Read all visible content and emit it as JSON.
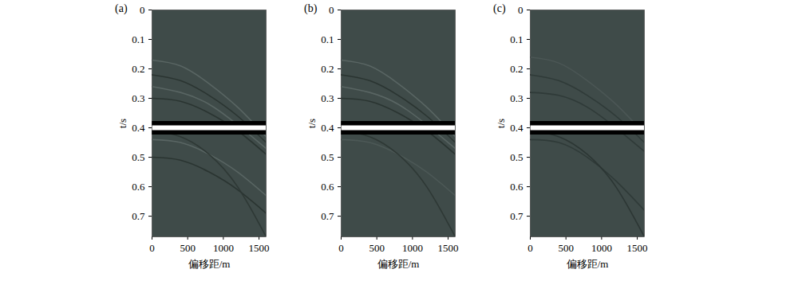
{
  "chart_data": [
    {
      "type": "line",
      "title": "(a)",
      "x_label": "偏移距/m",
      "y_label": "t/s",
      "xlim": [
        0,
        1600
      ],
      "xticks": [
        0,
        500,
        1000,
        1500
      ],
      "ylim": [
        0,
        0.77
      ],
      "yticks": [
        0,
        0.1,
        0.2,
        0.3,
        0.4,
        0.5,
        0.6,
        0.7
      ],
      "color": "#3f4b49",
      "series": [
        {
          "color": "#5c6866",
          "line_style": "thin",
          "x": [
            0,
            400,
            800,
            1200,
            1600
          ],
          "values": [
            0.17,
            0.19,
            0.25,
            0.33,
            0.43
          ]
        },
        {
          "color": "#28322f",
          "line_style": "thin",
          "x": [
            0,
            400,
            800,
            1200,
            1600
          ],
          "values": [
            0.22,
            0.24,
            0.29,
            0.36,
            0.45
          ]
        },
        {
          "color": "#5c6866",
          "line_style": "thin",
          "x": [
            0,
            400,
            800,
            1200,
            1600
          ],
          "values": [
            0.26,
            0.28,
            0.32,
            0.39,
            0.47
          ]
        },
        {
          "color": "#28322f",
          "line_style": "thin",
          "x": [
            0,
            400,
            800,
            1200,
            1600
          ],
          "values": [
            0.3,
            0.31,
            0.35,
            0.41,
            0.49
          ]
        },
        {
          "color": "#5c6866",
          "line_style": "thin",
          "x": [
            0,
            400,
            800,
            1200,
            1600
          ],
          "values": [
            0.44,
            0.45,
            0.49,
            0.55,
            0.63
          ]
        },
        {
          "color": "#28322f",
          "line_style": "thin",
          "x": [
            0,
            400,
            800,
            1200,
            1600
          ],
          "values": [
            0.5,
            0.51,
            0.55,
            0.61,
            0.69
          ]
        },
        {
          "color": "#2c3633",
          "line_style": "thin",
          "x": [
            0,
            400,
            800,
            1200,
            1600
          ],
          "values": [
            0.41,
            0.43,
            0.49,
            0.6,
            0.77
          ]
        },
        {
          "color": "#000000",
          "line_style": "thick",
          "x": [
            0,
            1600
          ],
          "values": [
            0.385,
            0.385
          ]
        },
        {
          "color": "#000000",
          "line_style": "thick",
          "x": [
            0,
            1600
          ],
          "values": [
            0.415,
            0.415
          ]
        },
        {
          "color": "#ffffff",
          "line_style": "thick",
          "x": [
            0,
            1600
          ],
          "values": [
            0.4,
            0.4
          ]
        }
      ]
    },
    {
      "type": "line",
      "title": "(b)",
      "x_label": "偏移距/m",
      "y_label": "t/s",
      "xlim": [
        0,
        1600
      ],
      "xticks": [
        0,
        500,
        1000,
        1500
      ],
      "ylim": [
        0,
        0.77
      ],
      "yticks": [
        0,
        0.1,
        0.2,
        0.3,
        0.4,
        0.5,
        0.6,
        0.7
      ],
      "color": "#3f4b49",
      "series": [
        {
          "color": "#5c6866",
          "line_style": "thin",
          "x": [
            0,
            400,
            800,
            1200,
            1600
          ],
          "values": [
            0.17,
            0.19,
            0.25,
            0.33,
            0.43
          ]
        },
        {
          "color": "#28322f",
          "line_style": "thin",
          "x": [
            0,
            400,
            800,
            1200,
            1600
          ],
          "values": [
            0.22,
            0.24,
            0.29,
            0.36,
            0.45
          ]
        },
        {
          "color": "#5c6866",
          "line_style": "thin",
          "x": [
            0,
            400,
            800,
            1200,
            1600
          ],
          "values": [
            0.26,
            0.28,
            0.32,
            0.39,
            0.47
          ]
        },
        {
          "color": "#28322f",
          "line_style": "thin",
          "x": [
            0,
            400,
            800,
            1200,
            1600
          ],
          "values": [
            0.3,
            0.31,
            0.35,
            0.41,
            0.49
          ]
        },
        {
          "color": "#4e5a58",
          "line_style": "thin",
          "x": [
            0,
            400,
            800,
            1200,
            1600
          ],
          "values": [
            0.44,
            0.45,
            0.49,
            0.55,
            0.63
          ]
        },
        {
          "color": "#2c3633",
          "line_style": "thin",
          "x": [
            0,
            400,
            800,
            1200,
            1600
          ],
          "values": [
            0.41,
            0.43,
            0.49,
            0.6,
            0.77
          ]
        },
        {
          "color": "#000000",
          "line_style": "thick",
          "x": [
            0,
            1600
          ],
          "values": [
            0.385,
            0.385
          ]
        },
        {
          "color": "#000000",
          "line_style": "thick",
          "x": [
            0,
            1600
          ],
          "values": [
            0.415,
            0.415
          ]
        },
        {
          "color": "#ffffff",
          "line_style": "thick",
          "x": [
            0,
            1600
          ],
          "values": [
            0.4,
            0.4
          ]
        }
      ]
    },
    {
      "type": "line",
      "title": "(c)",
      "x_label": "偏移距/m",
      "y_label": "t/s",
      "xlim": [
        0,
        1600
      ],
      "xticks": [
        0,
        500,
        1000,
        1500
      ],
      "ylim": [
        0,
        0.77
      ],
      "yticks": [
        0,
        0.1,
        0.2,
        0.3,
        0.4,
        0.5,
        0.6,
        0.7
      ],
      "color": "#3f4b49",
      "series": [
        {
          "color": "#4c5856",
          "line_style": "thin",
          "x": [
            0,
            400,
            800,
            1200,
            1600
          ],
          "values": [
            0.16,
            0.18,
            0.24,
            0.32,
            0.42
          ]
        },
        {
          "color": "#2e3836",
          "line_style": "thin",
          "x": [
            0,
            400,
            800,
            1200,
            1600
          ],
          "values": [
            0.22,
            0.24,
            0.29,
            0.36,
            0.45
          ]
        },
        {
          "color": "#2e3836",
          "line_style": "thin",
          "x": [
            0,
            400,
            800,
            1200,
            1600
          ],
          "values": [
            0.28,
            0.29,
            0.33,
            0.4,
            0.48
          ]
        },
        {
          "color": "#2e3836",
          "line_style": "thin",
          "x": [
            0,
            400,
            800,
            1200,
            1600
          ],
          "values": [
            0.44,
            0.45,
            0.5,
            0.58,
            0.68
          ]
        },
        {
          "color": "#2a3432",
          "line_style": "thin",
          "x": [
            0,
            400,
            800,
            1200,
            1600
          ],
          "values": [
            0.41,
            0.43,
            0.49,
            0.6,
            0.77
          ]
        },
        {
          "color": "#000000",
          "line_style": "thick",
          "x": [
            0,
            1600
          ],
          "values": [
            0.385,
            0.385
          ]
        },
        {
          "color": "#000000",
          "line_style": "thick",
          "x": [
            0,
            1600
          ],
          "values": [
            0.415,
            0.415
          ]
        },
        {
          "color": "#ffffff",
          "line_style": "thick",
          "x": [
            0,
            1600
          ],
          "values": [
            0.4,
            0.4
          ]
        }
      ]
    }
  ]
}
